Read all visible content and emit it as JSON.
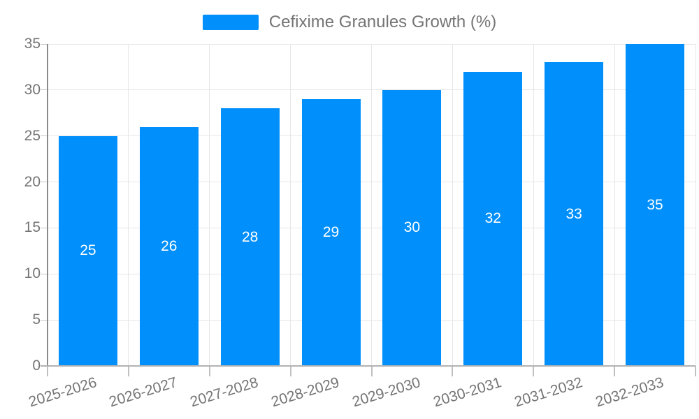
{
  "legend": {
    "items": [
      {
        "label": "Cefixime Granules Growth (%)",
        "color": "#008ffb"
      }
    ]
  },
  "chart_data": {
    "type": "bar",
    "title": "Cefixime Granules Growth (%)",
    "categories": [
      "2025-2026",
      "2026-2027",
      "2027-2028",
      "2028-2029",
      "2029-2030",
      "2030-2031",
      "2031-2032",
      "2032-2033"
    ],
    "values": [
      25,
      26,
      28,
      29,
      30,
      32,
      33,
      35
    ],
    "series": [
      {
        "name": "Cefixime Granules Growth (%)",
        "values": [
          25,
          26,
          28,
          29,
          30,
          32,
          33,
          35
        ]
      }
    ],
    "value_labels": [
      25,
      26,
      28,
      29,
      30,
      32,
      33,
      35
    ],
    "xlabel": "",
    "ylabel": "",
    "ylim": [
      0,
      35
    ],
    "yticks": [
      0,
      5,
      10,
      15,
      20,
      25,
      30,
      35
    ],
    "grid": true,
    "legend_position": "top",
    "x_label_rotation_deg": -17,
    "value_label_position": "inside-center"
  },
  "colors": {
    "bar": "#008ffb",
    "text": "#757575",
    "value_label": "#ffffff",
    "grid": "#e6e6e6",
    "y_axis_line": "#8a8a8a",
    "x_axis_line": "#b3b3b3",
    "tick": "#c0c0c0",
    "background": "#ffffff"
  }
}
